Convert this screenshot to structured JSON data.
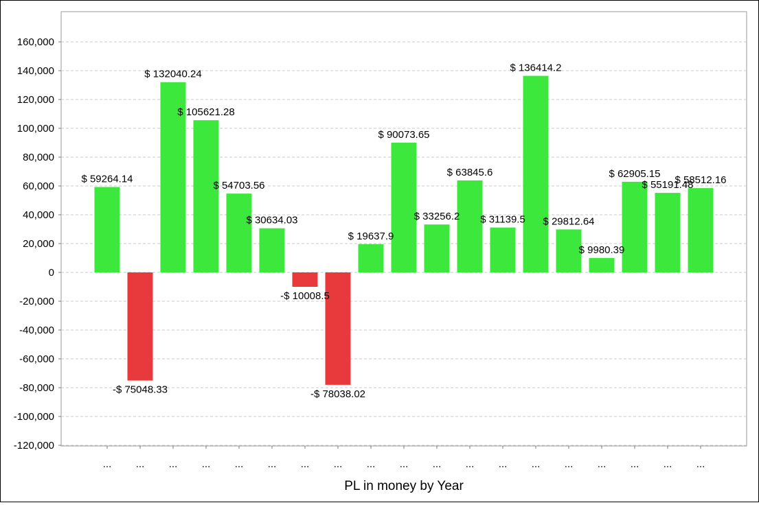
{
  "chart_data": {
    "type": "bar",
    "title": "",
    "xlabel": "PL in money by Year",
    "ylabel": "",
    "ylim": [
      -120000,
      170000
    ],
    "yticks": [
      -120000,
      -100000,
      -80000,
      -60000,
      -40000,
      -20000,
      0,
      20000,
      40000,
      60000,
      80000,
      100000,
      120000,
      140000,
      160000
    ],
    "ytick_labels": [
      "-120,000",
      "-100,000",
      "-80,000",
      "-60,000",
      "-40,000",
      "-20,000",
      "0",
      "20,000",
      "40,000",
      "60,000",
      "80,000",
      "100,000",
      "120,000",
      "140,000",
      "160,000"
    ],
    "grid": true,
    "legend": "none",
    "positive_color": "#3de83d",
    "negative_color": "#e83a3d",
    "categories": [
      "...",
      "...",
      "...",
      "...",
      "...",
      "...",
      "...",
      "...",
      "...",
      "...",
      "...",
      "...",
      "...",
      "...",
      "...",
      "...",
      "...",
      "...",
      "..."
    ],
    "values": [
      59264.14,
      -75048.33,
      132040.24,
      105621.28,
      54703.56,
      30634.03,
      -10008.5,
      -78038.02,
      19637.9,
      90073.65,
      33256.2,
      63845.6,
      31139.5,
      136414.2,
      29812.64,
      9980.39,
      62905.15,
      55191.48,
      58512.16
    ],
    "data_labels": [
      "$ 59264.14",
      "-$ 75048.33",
      "$ 132040.24",
      "$ 105621.28",
      "$ 54703.56",
      "$ 30634.03",
      "-$ 10008.5",
      "-$ 78038.02",
      "$ 19637.9",
      "$ 90073.65",
      "$ 33256.2",
      "$ 63845.6",
      "$ 31139.5",
      "$ 136414.2",
      "$ 29812.64",
      "$ 9980.39",
      "$ 62905.15",
      "$ 55191.48",
      "$ 58512.16"
    ]
  }
}
